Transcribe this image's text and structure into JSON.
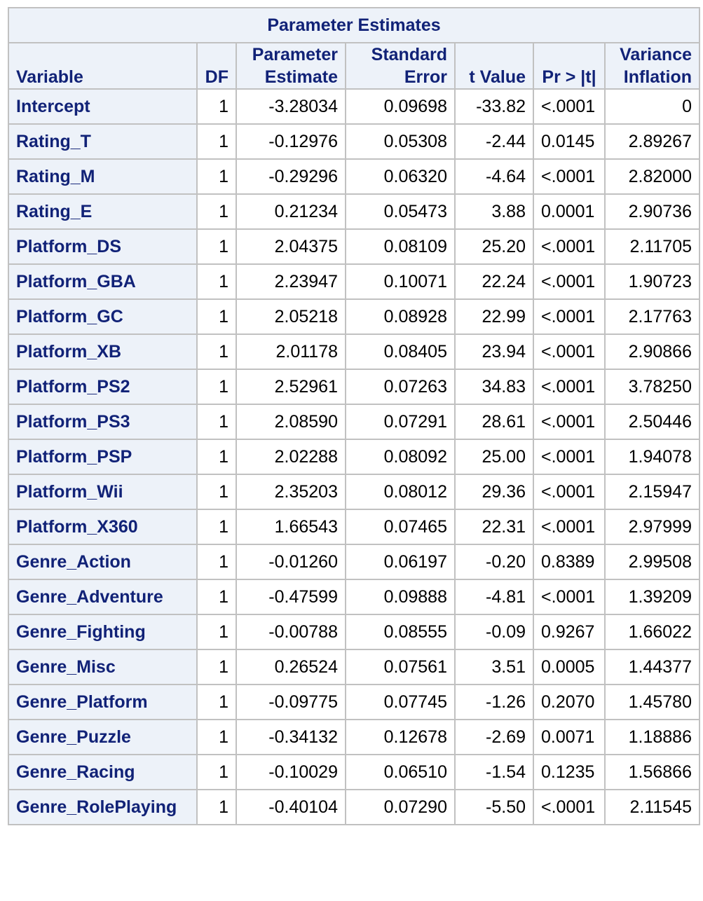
{
  "table": {
    "title": "Parameter Estimates",
    "headers": {
      "variable": "Variable",
      "df": "DF",
      "estimate_l1": "Parameter",
      "estimate_l2": "Estimate",
      "stderr_l1": "Standard",
      "stderr_l2": "Error",
      "tvalue": "t Value",
      "prob": "Pr > |t|",
      "vif_l1": "Variance",
      "vif_l2": "Inflation"
    },
    "rows": [
      {
        "variable": "Intercept",
        "df": "1",
        "estimate": "-3.28034",
        "stderr": "0.09698",
        "t": "-33.82",
        "p": "<.0001",
        "vif": "0"
      },
      {
        "variable": "Rating_T",
        "df": "1",
        "estimate": "-0.12976",
        "stderr": "0.05308",
        "t": "-2.44",
        "p": "0.0145",
        "vif": "2.89267"
      },
      {
        "variable": "Rating_M",
        "df": "1",
        "estimate": "-0.29296",
        "stderr": "0.06320",
        "t": "-4.64",
        "p": "<.0001",
        "vif": "2.82000"
      },
      {
        "variable": "Rating_E",
        "df": "1",
        "estimate": "0.21234",
        "stderr": "0.05473",
        "t": "3.88",
        "p": "0.0001",
        "vif": "2.90736"
      },
      {
        "variable": "Platform_DS",
        "df": "1",
        "estimate": "2.04375",
        "stderr": "0.08109",
        "t": "25.20",
        "p": "<.0001",
        "vif": "2.11705"
      },
      {
        "variable": "Platform_GBA",
        "df": "1",
        "estimate": "2.23947",
        "stderr": "0.10071",
        "t": "22.24",
        "p": "<.0001",
        "vif": "1.90723"
      },
      {
        "variable": "Platform_GC",
        "df": "1",
        "estimate": "2.05218",
        "stderr": "0.08928",
        "t": "22.99",
        "p": "<.0001",
        "vif": "2.17763"
      },
      {
        "variable": "Platform_XB",
        "df": "1",
        "estimate": "2.01178",
        "stderr": "0.08405",
        "t": "23.94",
        "p": "<.0001",
        "vif": "2.90866"
      },
      {
        "variable": "Platform_PS2",
        "df": "1",
        "estimate": "2.52961",
        "stderr": "0.07263",
        "t": "34.83",
        "p": "<.0001",
        "vif": "3.78250"
      },
      {
        "variable": "Platform_PS3",
        "df": "1",
        "estimate": "2.08590",
        "stderr": "0.07291",
        "t": "28.61",
        "p": "<.0001",
        "vif": "2.50446"
      },
      {
        "variable": "Platform_PSP",
        "df": "1",
        "estimate": "2.02288",
        "stderr": "0.08092",
        "t": "25.00",
        "p": "<.0001",
        "vif": "1.94078"
      },
      {
        "variable": "Platform_Wii",
        "df": "1",
        "estimate": "2.35203",
        "stderr": "0.08012",
        "t": "29.36",
        "p": "<.0001",
        "vif": "2.15947"
      },
      {
        "variable": "Platform_X360",
        "df": "1",
        "estimate": "1.66543",
        "stderr": "0.07465",
        "t": "22.31",
        "p": "<.0001",
        "vif": "2.97999"
      },
      {
        "variable": "Genre_Action",
        "df": "1",
        "estimate": "-0.01260",
        "stderr": "0.06197",
        "t": "-0.20",
        "p": "0.8389",
        "vif": "2.99508"
      },
      {
        "variable": "Genre_Adventure",
        "df": "1",
        "estimate": "-0.47599",
        "stderr": "0.09888",
        "t": "-4.81",
        "p": "<.0001",
        "vif": "1.39209"
      },
      {
        "variable": "Genre_Fighting",
        "df": "1",
        "estimate": "-0.00788",
        "stderr": "0.08555",
        "t": "-0.09",
        "p": "0.9267",
        "vif": "1.66022"
      },
      {
        "variable": "Genre_Misc",
        "df": "1",
        "estimate": "0.26524",
        "stderr": "0.07561",
        "t": "3.51",
        "p": "0.0005",
        "vif": "1.44377"
      },
      {
        "variable": "Genre_Platform",
        "df": "1",
        "estimate": "-0.09775",
        "stderr": "0.07745",
        "t": "-1.26",
        "p": "0.2070",
        "vif": "1.45780"
      },
      {
        "variable": "Genre_Puzzle",
        "df": "1",
        "estimate": "-0.34132",
        "stderr": "0.12678",
        "t": "-2.69",
        "p": "0.0071",
        "vif": "1.18886"
      },
      {
        "variable": "Genre_Racing",
        "df": "1",
        "estimate": "-0.10029",
        "stderr": "0.06510",
        "t": "-1.54",
        "p": "0.1235",
        "vif": "1.56866"
      },
      {
        "variable": "Genre_RolePlaying",
        "df": "1",
        "estimate": "-0.40104",
        "stderr": "0.07290",
        "t": "-5.50",
        "p": "<.0001",
        "vif": "2.11545"
      }
    ]
  },
  "colors": {
    "header_bg": "#edf2f9",
    "header_text": "#112277",
    "border": "#c1c1c1"
  }
}
